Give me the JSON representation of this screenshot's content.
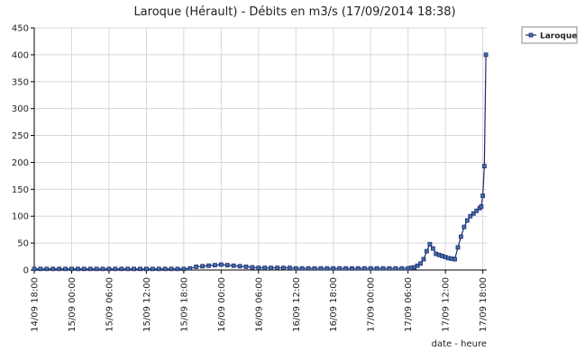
{
  "chart_data": {
    "type": "line",
    "title": "Laroque (Hérault) - Débits en m3/s (17/09/2014 18:38)",
    "xlabel": "date - heure",
    "ylabel": "",
    "ylim": [
      0,
      450
    ],
    "yticks": [
      0,
      50,
      100,
      150,
      200,
      250,
      300,
      350,
      400,
      450
    ],
    "xlim": [
      "14/09 18:00",
      "17/09 18:38"
    ],
    "xticks": [
      "14/09 18:00",
      "15/09 00:00",
      "15/09 06:00",
      "15/09 12:00",
      "15/09 18:00",
      "16/09 00:00",
      "16/09 06:00",
      "16/09 12:00",
      "16/09 18:00",
      "17/09 00:00",
      "17/09 06:00",
      "17/09 12:00",
      "17/09 18:00"
    ],
    "grid": true,
    "legend": "top-right",
    "series": [
      {
        "name": "Laroque",
        "color": "#1f2a6a",
        "marker_fill": "#3f6fb0",
        "x": [
          "14/09 18:00",
          "14/09 19:00",
          "14/09 20:00",
          "14/09 21:00",
          "14/09 22:00",
          "14/09 23:00",
          "15/09 00:00",
          "15/09 01:00",
          "15/09 02:00",
          "15/09 03:00",
          "15/09 04:00",
          "15/09 05:00",
          "15/09 06:00",
          "15/09 07:00",
          "15/09 08:00",
          "15/09 09:00",
          "15/09 10:00",
          "15/09 11:00",
          "15/09 12:00",
          "15/09 13:00",
          "15/09 14:00",
          "15/09 15:00",
          "15/09 16:00",
          "15/09 17:00",
          "15/09 18:00",
          "15/09 19:00",
          "15/09 20:00",
          "15/09 21:00",
          "15/09 22:00",
          "15/09 23:00",
          "16/09 00:00",
          "16/09 01:00",
          "16/09 02:00",
          "16/09 03:00",
          "16/09 04:00",
          "16/09 05:00",
          "16/09 06:00",
          "16/09 07:00",
          "16/09 08:00",
          "16/09 09:00",
          "16/09 10:00",
          "16/09 11:00",
          "16/09 12:00",
          "16/09 13:00",
          "16/09 14:00",
          "16/09 15:00",
          "16/09 16:00",
          "16/09 17:00",
          "16/09 18:00",
          "16/09 19:00",
          "16/09 20:00",
          "16/09 21:00",
          "16/09 22:00",
          "16/09 23:00",
          "17/09 00:00",
          "17/09 01:00",
          "17/09 02:00",
          "17/09 03:00",
          "17/09 04:00",
          "17/09 05:00",
          "17/09 06:00",
          "17/09 06:30",
          "17/09 07:00",
          "17/09 07:30",
          "17/09 08:00",
          "17/09 08:30",
          "17/09 09:00",
          "17/09 09:30",
          "17/09 10:00",
          "17/09 10:30",
          "17/09 11:00",
          "17/09 11:30",
          "17/09 12:00",
          "17/09 12:30",
          "17/09 13:00",
          "17/09 13:30",
          "17/09 14:00",
          "17/09 14:30",
          "17/09 15:00",
          "17/09 15:30",
          "17/09 16:00",
          "17/09 16:30",
          "17/09 17:00",
          "17/09 17:30",
          "17/09 17:45",
          "17/09 18:00",
          "17/09 18:15",
          "17/09 18:30"
        ],
        "values": [
          2,
          2,
          2,
          2,
          2,
          2,
          2,
          2,
          2,
          2,
          2,
          2,
          2,
          2,
          2,
          2,
          2,
          2,
          2,
          2,
          2,
          2,
          2,
          2,
          2,
          3,
          6,
          7,
          8,
          9,
          10,
          9,
          8,
          7,
          6,
          5,
          4,
          4,
          4,
          4,
          4,
          4,
          3,
          3,
          3,
          3,
          3,
          3,
          3,
          3,
          3,
          3,
          3,
          3,
          3,
          3,
          3,
          3,
          3,
          3,
          3,
          4,
          5,
          8,
          12,
          20,
          35,
          48,
          40,
          30,
          28,
          26,
          24,
          22,
          21,
          20,
          42,
          62,
          80,
          92,
          100,
          105,
          110,
          115,
          118,
          138,
          193,
          400
        ]
      }
    ]
  }
}
